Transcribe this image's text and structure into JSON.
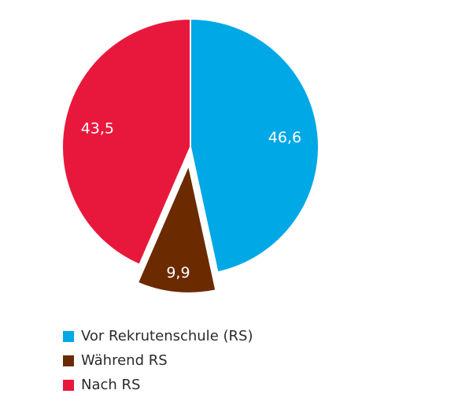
{
  "chart_data": {
    "type": "pie",
    "categories": [
      "Vor Rekrutenschule (RS)",
      "Während RS",
      "Nach RS"
    ],
    "values": [
      46.6,
      9.9,
      43.5
    ],
    "value_labels": [
      "46,6",
      "9,9",
      "43,5"
    ],
    "colors": [
      "#00a8e6",
      "#6b2a00",
      "#e8183c"
    ],
    "exploded": [
      false,
      true,
      false
    ],
    "start": "12 o'clock, clockwise",
    "legend_position": "bottom-left",
    "title": ""
  }
}
